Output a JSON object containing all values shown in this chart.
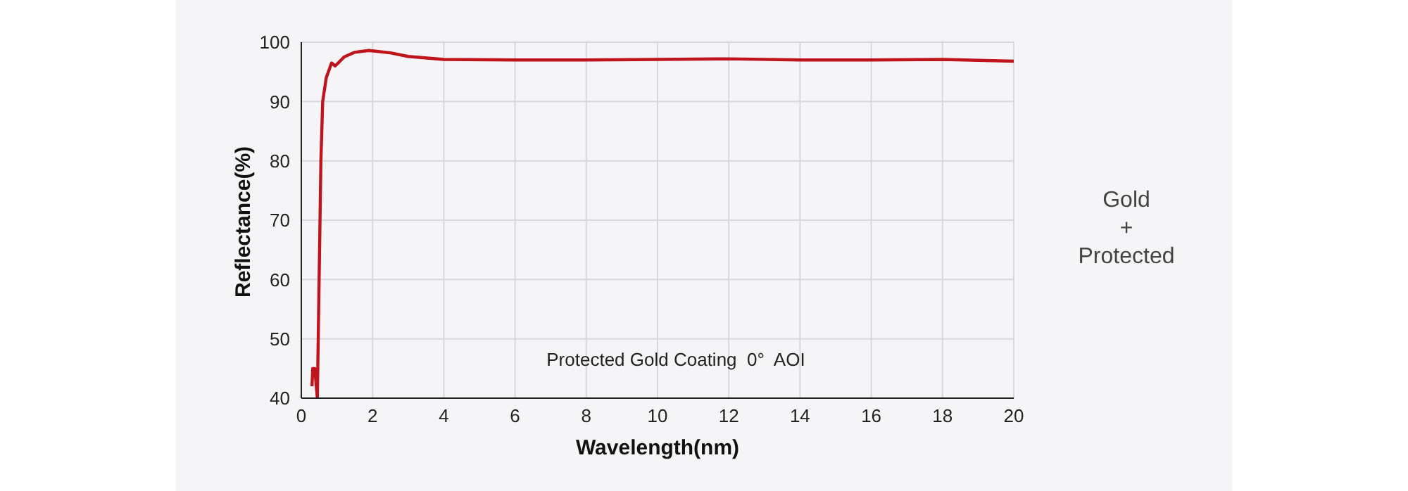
{
  "chart_data": {
    "type": "line",
    "xlabel": "Wavelength(nm)",
    "ylabel": "Reflectance(%)",
    "annotations": [
      "Protected Gold Coating  0°  AOI",
      "Gold\n+\nProtected"
    ],
    "x": [
      0.3,
      0.32,
      0.38,
      0.42,
      0.45,
      0.5,
      0.55,
      0.6,
      0.7,
      0.85,
      0.95,
      1.2,
      1.5,
      1.9,
      2.5,
      3,
      4,
      6,
      8,
      10,
      12,
      14,
      16,
      18,
      20
    ],
    "series": [
      {
        "color": "#c0141c",
        "values": [
          42,
          45,
          45,
          42,
          40,
          60,
          80,
          90,
          94,
          96.5,
          96,
          97.5,
          98.3,
          98.6,
          98.2,
          97.6,
          97.1,
          97.0,
          97.0,
          97.1,
          97.2,
          97.0,
          97.0,
          97.1,
          96.8
        ]
      }
    ],
    "xlim": [
      0,
      20
    ],
    "xticks": [
      0,
      2,
      4,
      6,
      8,
      10,
      12,
      14,
      16,
      18,
      20
    ],
    "ylim": [
      40,
      100
    ],
    "yticks": [
      40,
      50,
      60,
      70,
      80,
      90,
      100
    ],
    "grid": true,
    "legend": false,
    "marker": "none",
    "line_style": "solid"
  }
}
